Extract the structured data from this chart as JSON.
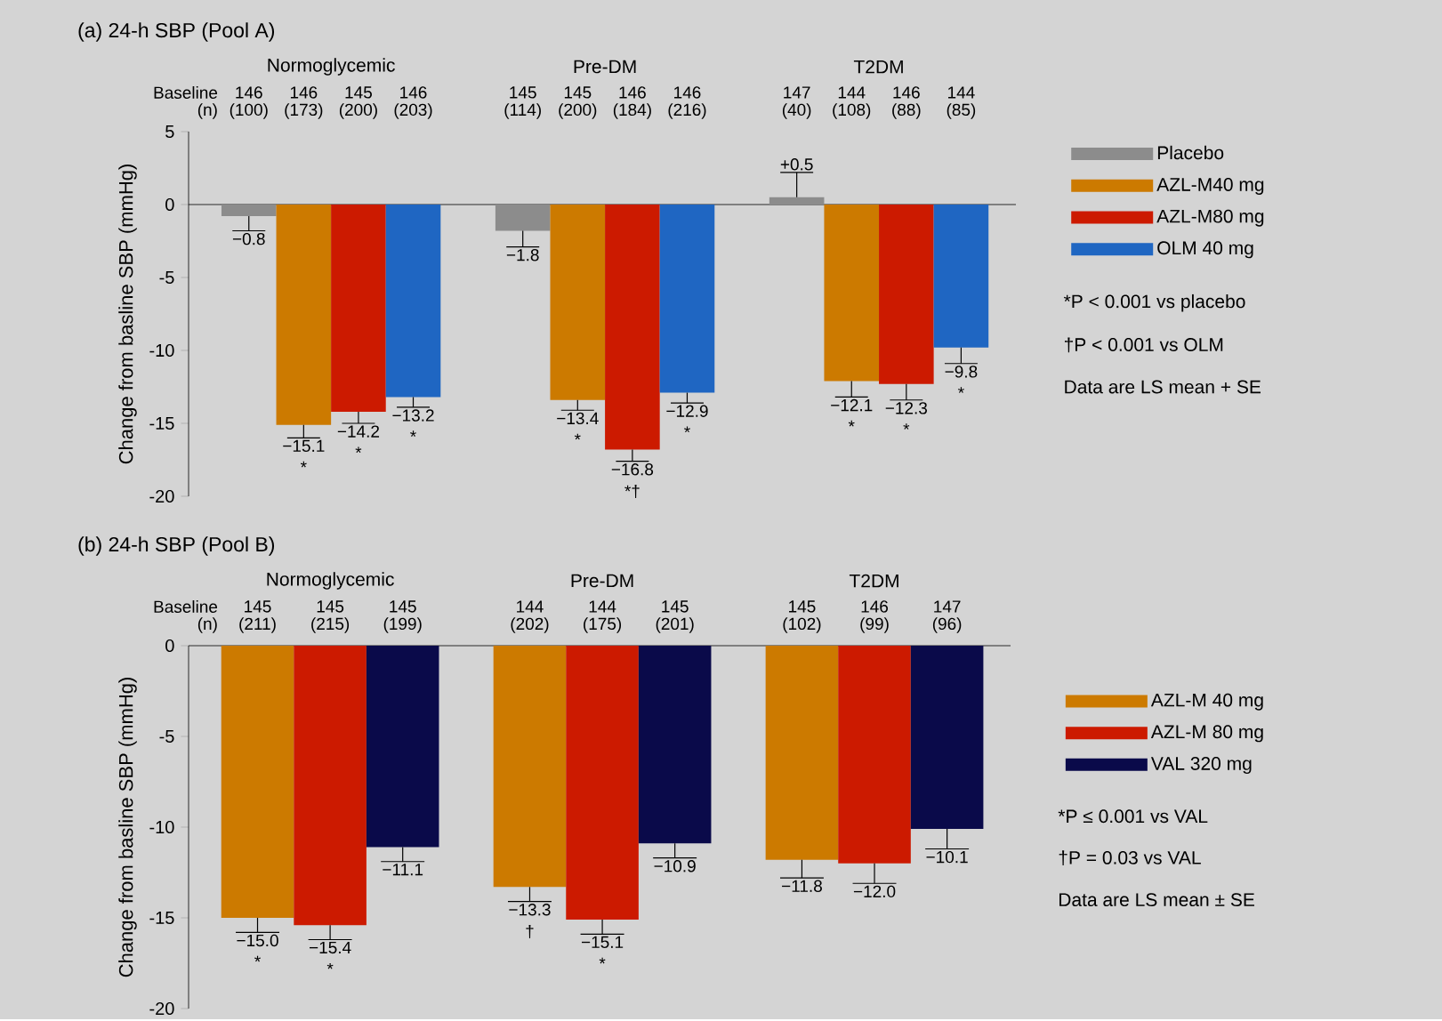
{
  "chart_data": [
    {
      "type": "bar",
      "title": "(a) 24-h SBP (Pool A)",
      "ylabel": "Change from basline SBP (mmHg)",
      "categories": [
        "Normoglycemic",
        "Pre-DM",
        "T2DM"
      ],
      "ylim": [
        -20,
        5
      ],
      "yticks": [
        -20,
        -15,
        -10,
        -5,
        0,
        5
      ],
      "legend": "right",
      "series": [
        {
          "name": "Placebo",
          "color": "#8c8c8c",
          "values": [
            -0.8,
            -1.8,
            0.5
          ],
          "errors": [
            [
              -1.8,
              -0.8
            ],
            [
              -2.9,
              -1.8
            ],
            [
              0.5,
              2.2
            ]
          ],
          "value_labels": [
            "−0.8",
            "−1.8",
            "+0.5"
          ]
        },
        {
          "name": "AZL-M40 mg",
          "color": "#cc7a00",
          "values": [
            -15.1,
            -13.4,
            -12.1
          ],
          "errors": [
            [
              -16.0,
              -15.1
            ],
            [
              -14.1,
              -13.4
            ],
            [
              -13.2,
              -12.1
            ]
          ],
          "value_labels": [
            "−15.1",
            "−13.4",
            "−12.1"
          ]
        },
        {
          "name": "AZL-M80 mg",
          "color": "#cc1a00",
          "values": [
            -14.2,
            -16.8,
            -12.3
          ],
          "errors": [
            [
              -15.0,
              -14.2
            ],
            [
              -17.6,
              -16.8
            ],
            [
              -13.4,
              -12.3
            ]
          ],
          "value_labels": [
            "−14.2",
            "−16.8",
            "−12.3"
          ]
        },
        {
          "name": "OLM 40 mg",
          "color": "#1f66c2",
          "values": [
            -13.2,
            -12.9,
            -9.8
          ],
          "errors": [
            [
              -13.9,
              -13.2
            ],
            [
              -13.6,
              -12.9
            ],
            [
              -10.9,
              -9.8
            ]
          ],
          "value_labels": [
            "−13.2",
            "−12.9",
            "−9.8"
          ]
        }
      ],
      "annotations": [
        "Baseline",
        "(n)",
        "146",
        "146",
        "145",
        "146",
        "145",
        "145",
        "146",
        "146",
        "147",
        "144",
        "146",
        "144",
        "(100)",
        "(173)",
        "(200)",
        "(203)",
        "(114)",
        "(200)",
        "(184)",
        "(216)",
        "(40)",
        "(108)",
        "(88)",
        "(85)",
        "*P < 0.001 vs placebo",
        "†P < 0.001 vs OLM",
        "Data are LS mean + SE",
        "*",
        "*",
        "*",
        "*",
        "*†",
        "*",
        "*",
        "*",
        "*"
      ]
    },
    {
      "type": "bar",
      "title": "(b) 24-h SBP (Pool B)",
      "ylabel": "Change from basline SBP (mmHg)",
      "categories": [
        "Normoglycemic",
        "Pre-DM",
        "T2DM"
      ],
      "ylim": [
        -20,
        0
      ],
      "yticks": [
        -20,
        -15,
        -10,
        -5,
        0
      ],
      "legend": "right",
      "series": [
        {
          "name": "AZL-M 40 mg",
          "color": "#cc7a00",
          "values": [
            -15.0,
            -13.3,
            -11.8
          ],
          "errors": [
            [
              -15.8,
              -15.0
            ],
            [
              -14.1,
              -13.3
            ],
            [
              -12.8,
              -11.8
            ]
          ],
          "value_labels": [
            "−15.0",
            "−13.3",
            "−11.8"
          ]
        },
        {
          "name": "AZL-M 80 mg",
          "color": "#cc1a00",
          "values": [
            -15.4,
            -15.1,
            -12.0
          ],
          "errors": [
            [
              -16.2,
              -15.4
            ],
            [
              -15.9,
              -15.1
            ],
            [
              -13.1,
              -12.0
            ]
          ],
          "value_labels": [
            "−15.4",
            "−15.1",
            "−12.0"
          ]
        },
        {
          "name": "VAL 320 mg",
          "color": "#0a0a4a",
          "values": [
            -11.1,
            -10.9,
            -10.1
          ],
          "errors": [
            [
              -11.9,
              -11.1
            ],
            [
              -11.7,
              -10.9
            ],
            [
              -11.2,
              -10.1
            ]
          ],
          "value_labels": [
            "−11.1",
            "−10.9",
            "−10.1"
          ]
        }
      ],
      "annotations": [
        "Baseline",
        "(n)",
        "145",
        "145",
        "145",
        "144",
        "144",
        "145",
        "145",
        "146",
        "147",
        "(211)",
        "(215)",
        "(199)",
        "(202)",
        "(175)",
        "(201)",
        "(102)",
        "(99)",
        "(96)",
        "*P ≤ 0.001 vs VAL",
        "†P = 0.03 vs VAL",
        "Data are LS mean ± SE",
        "*",
        "*",
        "†",
        "*"
      ]
    }
  ]
}
